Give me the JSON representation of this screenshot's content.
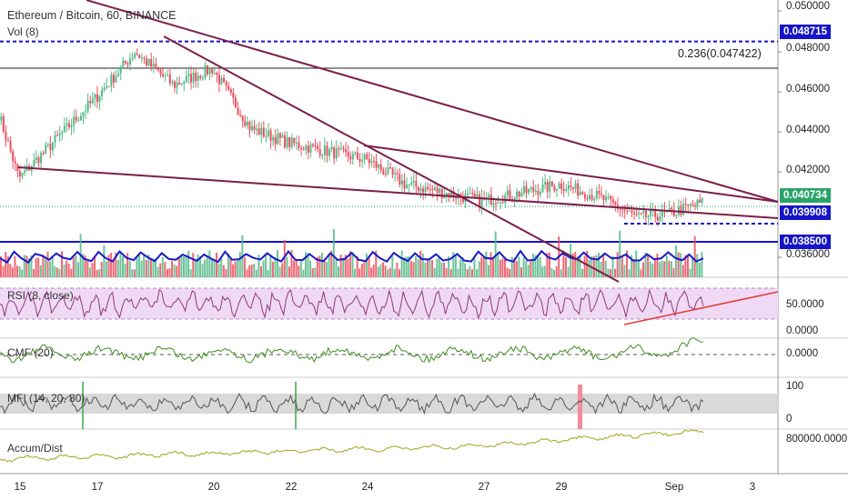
{
  "header": {
    "title": "Ethereum / Bitcoin, 60, BINANCE",
    "volume_label": "Vol (8)"
  },
  "panes": {
    "rsi_label": "RSI (8, close)",
    "cmf_label": "CMF (20)",
    "mfi_label": "MFI (14, 20, 80)",
    "ad_label": "Accum/Dist"
  },
  "annotations": {
    "fib_label": "0.236(0.047422)"
  },
  "price_axis": {
    "ticks": [
      "0.050000",
      "0.048000",
      "0.046000",
      "0.044000",
      "0.042000",
      "0.036000"
    ],
    "level_high": "0.048715",
    "level_current": "0.040734",
    "level_support": "0.039908",
    "level_low": "0.038500"
  },
  "indicator_axis": {
    "rsi_ticks": [
      "50.0000",
      "0.0000"
    ],
    "cmf_ticks": [
      "0.0000"
    ],
    "mfi_ticks": [
      "100",
      "0"
    ],
    "ad_ticks": [
      "800000.0000"
    ]
  },
  "colors": {
    "up": "#53b987",
    "down": "#eb4d5c",
    "trendline": "#7b1e4b",
    "level_blue": "#1515c8",
    "rsi_fill": "#f0d9f5",
    "mfi_fill": "#d9d9d9",
    "cmf_line": "#3e8e1f",
    "ad_line": "#a3a31a"
  },
  "chart_data": {
    "type": "candlestick",
    "symbol": "Ethereum / Bitcoin",
    "timeframe": "60",
    "exchange": "BINANCE",
    "x_ticks": [
      "15",
      "17",
      "20",
      "22",
      "24",
      "27",
      "29",
      "Sep",
      "3"
    ],
    "y_range": [
      0.0355,
      0.0505
    ],
    "key_price_path": [
      {
        "date": "15",
        "price": 0.0452
      },
      {
        "date": "15",
        "price": 0.0421
      },
      {
        "date": "17",
        "price": 0.046
      },
      {
        "date": "18",
        "price": 0.0482
      },
      {
        "date": "19",
        "price": 0.0466
      },
      {
        "date": "20",
        "price": 0.0474
      },
      {
        "date": "21",
        "price": 0.0445
      },
      {
        "date": "22",
        "price": 0.0438
      },
      {
        "date": "24",
        "price": 0.043
      },
      {
        "date": "25",
        "price": 0.0418
      },
      {
        "date": "27",
        "price": 0.041
      },
      {
        "date": "29",
        "price": 0.0418
      },
      {
        "date": "30",
        "price": 0.0412
      },
      {
        "date": "31",
        "price": 0.0402
      },
      {
        "date": "Sep",
        "price": 0.0404
      },
      {
        "date": "Sep",
        "price": 0.0409
      }
    ],
    "horizontal_levels": [
      0.048715,
      0.047422,
      0.040734,
      0.039908,
      0.0385
    ],
    "rsi_axis_values": [
      50,
      0
    ],
    "mfi_axis_values": [
      100,
      0
    ],
    "cmf_axis_values": [
      0
    ],
    "accum_dist_axis_values": [
      800000
    ]
  }
}
